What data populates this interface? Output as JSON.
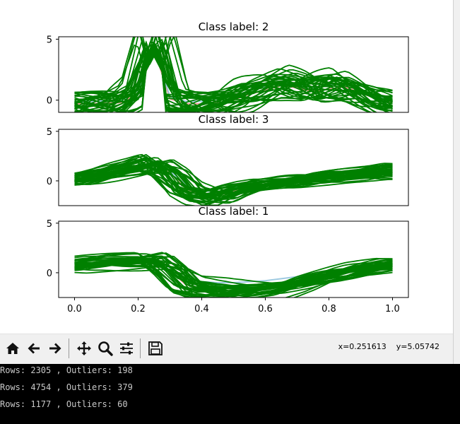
{
  "chart_data": [
    {
      "type": "line",
      "title": "Class label: 2",
      "xlim": [
        -0.05,
        1.05
      ],
      "ylim": [
        -1.0,
        5.2
      ],
      "yticks": [
        0,
        5
      ],
      "yticklabels": [
        "0",
        "5"
      ],
      "series": [
        {
          "color": "#ef9a9a",
          "kind": "class-mean",
          "x": [
            0,
            0.05,
            0.1,
            0.15,
            0.2,
            0.25,
            0.3,
            0.35,
            0.4,
            0.45,
            0.5,
            0.55,
            0.6,
            0.65,
            0.7,
            0.75,
            0.8,
            0.85,
            0.9,
            0.95,
            1.0
          ],
          "y": [
            -0.3,
            -0.3,
            -0.25,
            -0.2,
            0.6,
            4.2,
            0.1,
            -0.3,
            -0.3,
            -0.2,
            0.0,
            0.5,
            0.8,
            1.2,
            1.0,
            0.7,
            0.9,
            1.1,
            0.6,
            0.1,
            -0.2
          ]
        },
        {
          "color": "#9ecae1",
          "kind": "class-band",
          "x": [
            0,
            0.05,
            0.1,
            0.15,
            0.2,
            0.25,
            0.3,
            0.35,
            0.4,
            0.45,
            0.5,
            0.55,
            0.6,
            0.65,
            0.7,
            0.75,
            0.8,
            0.85,
            0.9,
            0.95,
            1.0
          ],
          "y": [
            -0.1,
            -0.1,
            -0.05,
            0.0,
            0.8,
            4.4,
            0.3,
            -0.1,
            -0.1,
            0.1,
            0.3,
            0.8,
            1.1,
            1.5,
            1.3,
            1.0,
            1.2,
            1.4,
            0.9,
            0.3,
            0.0
          ]
        }
      ]
    },
    {
      "type": "line",
      "title": "Class label: 3",
      "xlim": [
        -0.05,
        1.05
      ],
      "ylim": [
        -2.5,
        5.2
      ],
      "yticks": [
        0,
        5
      ],
      "yticklabels": [
        "0",
        "5"
      ],
      "series": [
        {
          "color": "#ef9a9a",
          "kind": "class-mean",
          "x": [
            0,
            0.05,
            0.1,
            0.15,
            0.2,
            0.25,
            0.3,
            0.35,
            0.4,
            0.45,
            0.5,
            0.55,
            0.6,
            0.65,
            0.7,
            0.75,
            0.8,
            0.85,
            0.9,
            0.95,
            1.0
          ],
          "y": [
            0.0,
            0.3,
            0.6,
            0.9,
            1.2,
            1.6,
            0.8,
            -0.8,
            -1.4,
            -1.5,
            -1.0,
            -0.6,
            -0.3,
            -0.2,
            0.0,
            0.2,
            0.4,
            0.5,
            0.6,
            0.7,
            0.9
          ]
        },
        {
          "color": "#9ecae1",
          "kind": "class-band",
          "x": [
            0,
            0.05,
            0.1,
            0.15,
            0.2,
            0.25,
            0.3,
            0.35,
            0.4,
            0.45,
            0.5,
            0.55,
            0.6,
            0.65,
            0.7,
            0.75,
            0.8,
            0.85,
            0.9,
            0.95,
            1.0
          ],
          "y": [
            0.2,
            0.5,
            0.8,
            1.1,
            1.4,
            1.8,
            1.0,
            -0.4,
            -1.0,
            -1.1,
            -0.7,
            -0.3,
            0.0,
            0.1,
            0.2,
            0.4,
            0.6,
            0.7,
            0.8,
            0.9,
            1.0
          ]
        }
      ]
    },
    {
      "type": "line",
      "title": "Class label: 1",
      "xlim": [
        -0.05,
        1.05
      ],
      "ylim": [
        -2.5,
        5.2
      ],
      "yticks": [
        0,
        5
      ],
      "yticklabels": [
        "0",
        "5"
      ],
      "xticks": [
        0.0,
        0.2,
        0.4,
        0.6,
        0.8,
        1.0
      ],
      "xticklabels": [
        "0.0",
        "0.2",
        "0.4",
        "0.6",
        "0.8",
        "1.0"
      ],
      "series": [
        {
          "color": "#ef9a9a",
          "kind": "class-mean",
          "x": [
            0,
            0.05,
            0.1,
            0.15,
            0.2,
            0.25,
            0.3,
            0.35,
            0.4,
            0.45,
            0.5,
            0.55,
            0.6,
            0.65,
            0.7,
            0.75,
            0.8,
            0.85,
            0.9,
            0.95,
            1.0
          ],
          "y": [
            0.6,
            0.8,
            0.9,
            1.0,
            1.1,
            1.2,
            0.2,
            -1.2,
            -1.6,
            -1.8,
            -1.8,
            -1.7,
            -1.6,
            -1.3,
            -1.0,
            -0.6,
            -0.3,
            0.0,
            0.3,
            0.5,
            0.7
          ]
        },
        {
          "color": "#9ecae1",
          "kind": "class-band",
          "x": [
            0,
            0.05,
            0.1,
            0.15,
            0.2,
            0.25,
            0.3,
            0.35,
            0.4,
            0.45,
            0.5,
            0.55,
            0.6,
            0.65,
            0.7,
            0.75,
            0.8,
            0.85,
            0.9,
            0.95,
            1.0
          ],
          "y": [
            0.8,
            1.0,
            1.1,
            1.2,
            1.3,
            1.4,
            0.5,
            -0.6,
            -0.9,
            -1.0,
            -1.0,
            -0.9,
            -0.8,
            -0.6,
            -0.4,
            -0.1,
            0.2,
            0.4,
            0.6,
            0.8,
            0.9
          ]
        }
      ]
    }
  ],
  "toolbar": {
    "buttons": [
      "home-icon",
      "back-icon",
      "forward-icon",
      "pan-icon",
      "zoom-icon",
      "configure-subplots-icon",
      "save-icon"
    ],
    "coord_x": "x=0.251613",
    "coord_y": "y=5.05742"
  },
  "console": {
    "lines": [
      "Rows: 2305 , Outliers: 198",
      "Rows: 4754 , Outliers: 379",
      "Rows: 1177 , Outliers: 60"
    ]
  },
  "colors": {
    "sample_line": "#008000",
    "class_mean": "#ef9a9a",
    "class_band": "#9ecae1",
    "console_bg": "#000000",
    "toolbar_bg": "#f0f0f0"
  }
}
